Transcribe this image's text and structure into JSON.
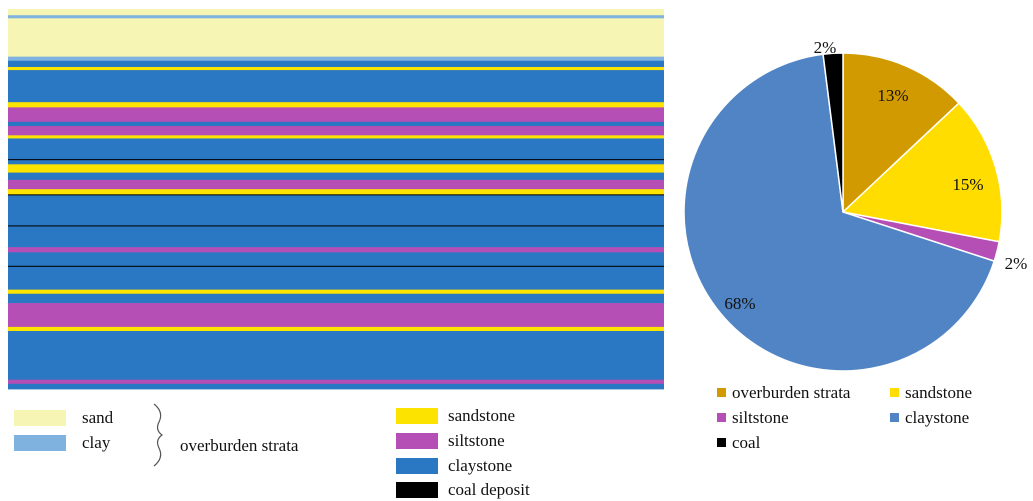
{
  "chart_data": [
    {
      "type": "stratigraphic-column",
      "colors": {
        "sand": "#f6f5b3",
        "clay": "#7fb2df",
        "sandstone": "#fce300",
        "siltstone": "#b54fb5",
        "claystone": "#2a78c4",
        "coal": "#000000"
      },
      "layers": [
        {
          "type": "sand",
          "thickness": 6
        },
        {
          "type": "clay",
          "thickness": 3
        },
        {
          "type": "sand",
          "thickness": 37
        },
        {
          "type": "clay",
          "thickness": 4
        },
        {
          "type": "claystone",
          "thickness": 6
        },
        {
          "type": "sandstone",
          "thickness": 3
        },
        {
          "type": "claystone",
          "thickness": 31
        },
        {
          "type": "sandstone",
          "thickness": 5
        },
        {
          "type": "siltstone",
          "thickness": 14
        },
        {
          "type": "claystone",
          "thickness": 4
        },
        {
          "type": "siltstone",
          "thickness": 9
        },
        {
          "type": "sandstone",
          "thickness": 3
        },
        {
          "type": "claystone",
          "thickness": 20
        },
        {
          "type": "coal",
          "thickness": 1
        },
        {
          "type": "claystone",
          "thickness": 4
        },
        {
          "type": "sandstone",
          "thickness": 8
        },
        {
          "type": "claystone",
          "thickness": 7
        },
        {
          "type": "siltstone",
          "thickness": 9
        },
        {
          "type": "sandstone",
          "thickness": 5
        },
        {
          "type": "coal",
          "thickness": 1
        },
        {
          "type": "claystone",
          "thickness": 29
        },
        {
          "type": "coal",
          "thickness": 1
        },
        {
          "type": "claystone",
          "thickness": 20
        },
        {
          "type": "siltstone",
          "thickness": 5
        },
        {
          "type": "claystone",
          "thickness": 13
        },
        {
          "type": "coal",
          "thickness": 1
        },
        {
          "type": "claystone",
          "thickness": 22
        },
        {
          "type": "sandstone",
          "thickness": 4
        },
        {
          "type": "claystone",
          "thickness": 9
        },
        {
          "type": "siltstone",
          "thickness": 23
        },
        {
          "type": "sandstone",
          "thickness": 4
        },
        {
          "type": "claystone",
          "thickness": 47
        },
        {
          "type": "siltstone",
          "thickness": 4
        },
        {
          "type": "claystone",
          "thickness": 5
        }
      ],
      "legend": {
        "overburden": [
          {
            "label": "sand",
            "color": "#f6f5b3"
          },
          {
            "label": "clay",
            "color": "#7fb2df"
          }
        ],
        "overburden_group_label": "overburden strata",
        "rock": [
          {
            "label": "sandstone",
            "color": "#fce300"
          },
          {
            "label": "siltstone",
            "color": "#b54fb5"
          },
          {
            "label": "claystone",
            "color": "#2a78c4"
          },
          {
            "label": "coal deposit",
            "color": "#000000"
          }
        ]
      }
    },
    {
      "type": "pie",
      "slices": [
        {
          "label": "overburden strata",
          "value": 13,
          "color": "#d19a00",
          "text": "13%"
        },
        {
          "label": "sandstone",
          "value": 15,
          "color": "#ffdd00",
          "text": "15%"
        },
        {
          "label": "siltstone",
          "value": 2,
          "color": "#b54fb5",
          "text": "2%"
        },
        {
          "label": "claystone",
          "value": 68,
          "color": "#5084c4",
          "text": "68%"
        },
        {
          "label": "coal",
          "value": 2,
          "color": "#000000",
          "text": "2%"
        }
      ],
      "start": "12 o'clock",
      "direction": "clockwise",
      "legend_position": "bottom",
      "legend": [
        {
          "label": "overburden strata",
          "color": "#d19a00"
        },
        {
          "label": "sandstone",
          "color": "#ffdd00"
        },
        {
          "label": "siltstone",
          "color": "#b54fb5"
        },
        {
          "label": "claystone",
          "color": "#5084c4"
        },
        {
          "label": "coal",
          "color": "#000000"
        }
      ]
    }
  ]
}
